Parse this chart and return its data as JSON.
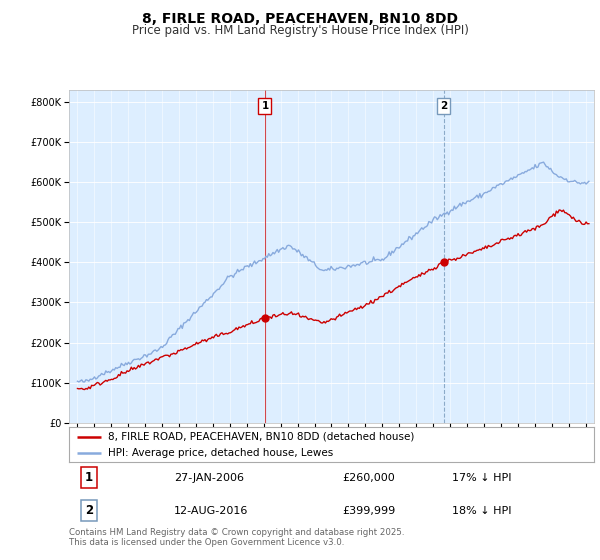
{
  "title": "8, FIRLE ROAD, PEACEHAVEN, BN10 8DD",
  "subtitle": "Price paid vs. HM Land Registry's House Price Index (HPI)",
  "legend_line1": "8, FIRLE ROAD, PEACEHAVEN, BN10 8DD (detached house)",
  "legend_line2": "HPI: Average price, detached house, Lewes",
  "annotation1_num": "1",
  "annotation1_date": "27-JAN-2006",
  "annotation1_price": "£260,000",
  "annotation1_hpi": "17% ↓ HPI",
  "annotation2_num": "2",
  "annotation2_date": "12-AUG-2016",
  "annotation2_price": "£399,999",
  "annotation2_hpi": "18% ↓ HPI",
  "sale1_year": 2006.07,
  "sale2_year": 2016.62,
  "sale1_price": 260000,
  "sale2_price": 399999,
  "price_color": "#cc0000",
  "hpi_color": "#88aadd",
  "vline1_color": "#cc0000",
  "vline2_color": "#7799bb",
  "background_color": "#ddeeff",
  "footnote": "Contains HM Land Registry data © Crown copyright and database right 2025.\nThis data is licensed under the Open Government Licence v3.0.",
  "ylim_max": 830000,
  "xmin": 1994.5,
  "xmax": 2025.5
}
